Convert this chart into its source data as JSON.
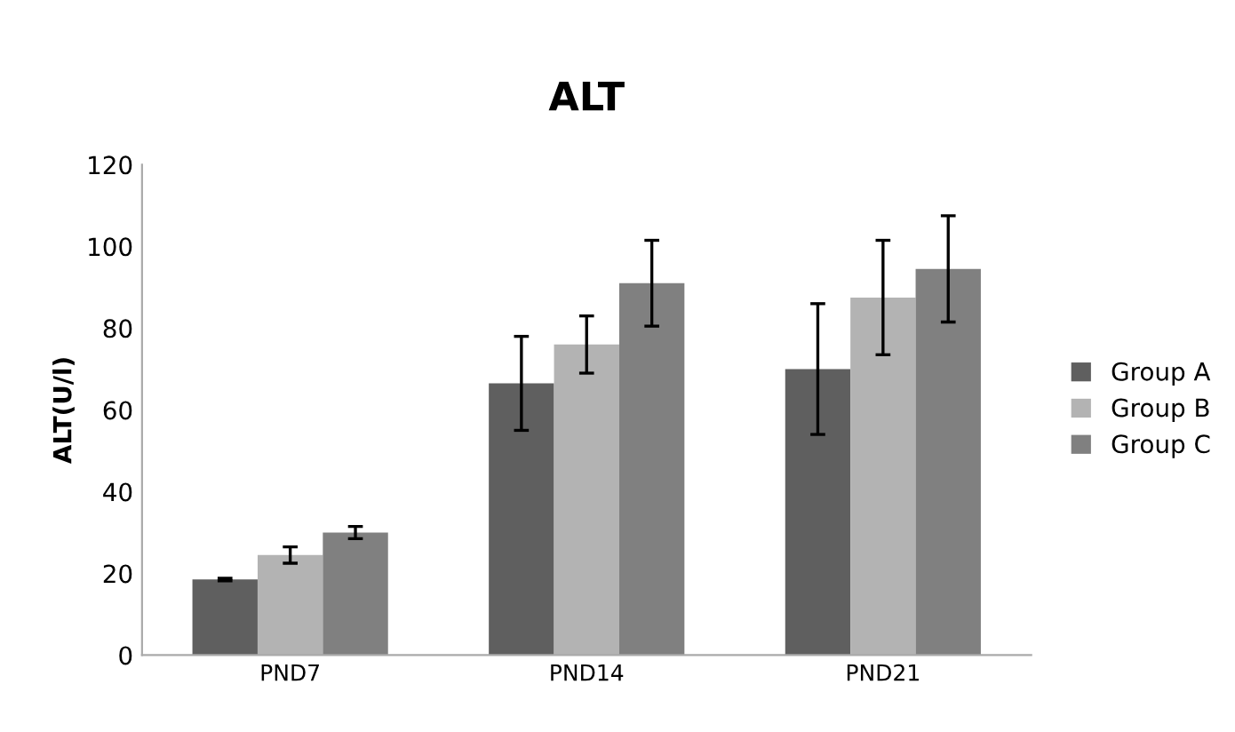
{
  "chart_data": {
    "type": "bar",
    "title": "ALT",
    "ylabel": "ALT(U/l)",
    "categories": [
      "PND7",
      "PND14",
      "PND21"
    ],
    "series": [
      {
        "name": "Group A",
        "color": "#5f5f5f",
        "values": [
          18.5,
          66.5,
          70
        ],
        "errors": [
          0.3,
          11.5,
          16
        ]
      },
      {
        "name": "Group B",
        "color": "#b3b3b3",
        "values": [
          24.5,
          76,
          87.5
        ],
        "errors": [
          2,
          7,
          14
        ]
      },
      {
        "name": "Group C",
        "color": "#808080",
        "values": [
          30,
          91,
          94.5
        ],
        "errors": [
          1.5,
          10.5,
          13
        ]
      }
    ],
    "ylim": [
      0,
      120
    ],
    "yticks": [
      0,
      20,
      40,
      60,
      80,
      100,
      120
    ],
    "grid": false,
    "legend": "right"
  }
}
